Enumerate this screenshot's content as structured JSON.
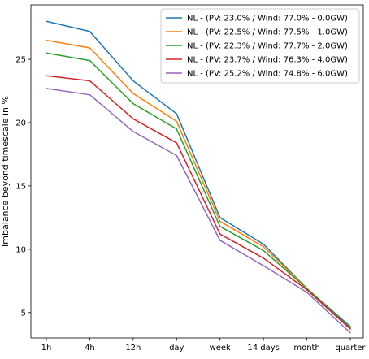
{
  "chart_data": {
    "type": "line",
    "title": "",
    "xlabel": "",
    "ylabel": "Imbalance beyond timescale in %",
    "categories": [
      "1h",
      "4h",
      "12h",
      "day",
      "week",
      "14 days",
      "month",
      "quarter"
    ],
    "yticks": [
      5,
      10,
      15,
      20,
      25
    ],
    "ylim": [
      3.0,
      29.3
    ],
    "grid": false,
    "legend_position": "top-right",
    "series": [
      {
        "name": "NL - (PV: 23.0% / Wind: 77.0% - 0.0GW)",
        "color": "#1f77b4",
        "values": [
          28.0,
          27.2,
          23.3,
          20.7,
          12.5,
          10.4,
          6.9,
          3.9
        ]
      },
      {
        "name": "NL - (PV: 22.5% / Wind: 77.5% - 1.0GW)",
        "color": "#ff7f0e",
        "values": [
          26.5,
          25.9,
          22.3,
          20.1,
          12.2,
          10.2,
          6.9,
          3.8
        ]
      },
      {
        "name": "NL - (PV: 22.3% / Wind: 77.7% - 2.0GW)",
        "color": "#2ca02c",
        "values": [
          25.5,
          24.9,
          21.5,
          19.5,
          11.8,
          9.9,
          6.9,
          3.8
        ]
      },
      {
        "name": "NL - (PV: 23.7% / Wind: 76.3% - 4.0GW)",
        "color": "#d62728",
        "values": [
          23.7,
          23.3,
          20.3,
          18.4,
          11.2,
          9.3,
          6.8,
          3.7
        ]
      },
      {
        "name": "NL - (PV: 25.2% / Wind: 74.8% - 6.0GW)",
        "color": "#9467bd",
        "values": [
          22.7,
          22.2,
          19.3,
          17.4,
          10.7,
          8.7,
          6.6,
          3.4
        ]
      }
    ]
  }
}
